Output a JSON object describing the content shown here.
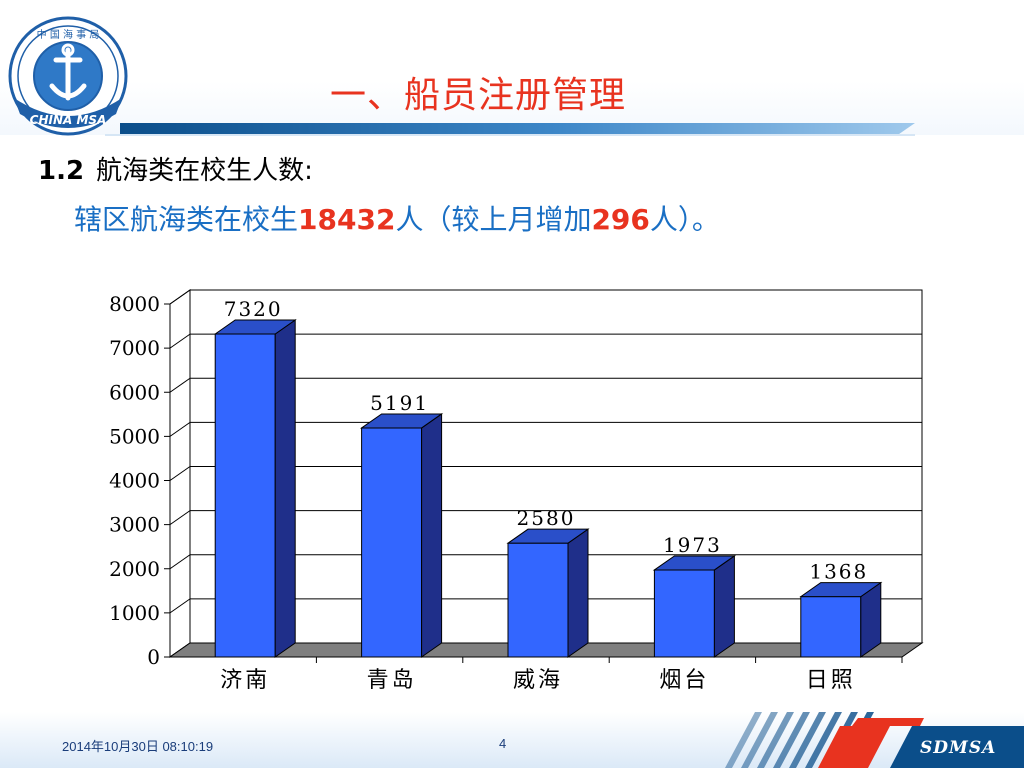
{
  "header": {
    "title": "一、船员注册管理",
    "logo": {
      "top_text": "中 国 海 事 局",
      "bottom_text": "CHINA MSA"
    }
  },
  "section": {
    "number": "1.2",
    "heading": "航海类在校生人数:",
    "summary_prefix": "辖区航海类在校生",
    "summary_total": "18432",
    "summary_mid": "人（较上月增加",
    "summary_increase": "296",
    "summary_suffix": "人）。"
  },
  "chart_data": {
    "type": "bar",
    "categories": [
      "济南",
      "青岛",
      "威海",
      "烟台",
      "日照"
    ],
    "values": [
      7320,
      5191,
      2580,
      1973,
      1368
    ],
    "ylim": [
      0,
      8000
    ],
    "yticks": [
      0,
      1000,
      2000,
      3000,
      4000,
      5000,
      6000,
      7000,
      8000
    ],
    "grid": true,
    "three_d": true,
    "bar_color": "#3366ff",
    "bar_side_color": "#1f2f8a",
    "bar_top_color": "#2a4fc9",
    "floor_color": "#7f7f7f"
  },
  "footer": {
    "date": "2014年10月30日  08:10:19",
    "page": "4",
    "logo_text": "SDMSA",
    "accent_color": "#e8331f",
    "band_color": "#0b4e8a"
  }
}
